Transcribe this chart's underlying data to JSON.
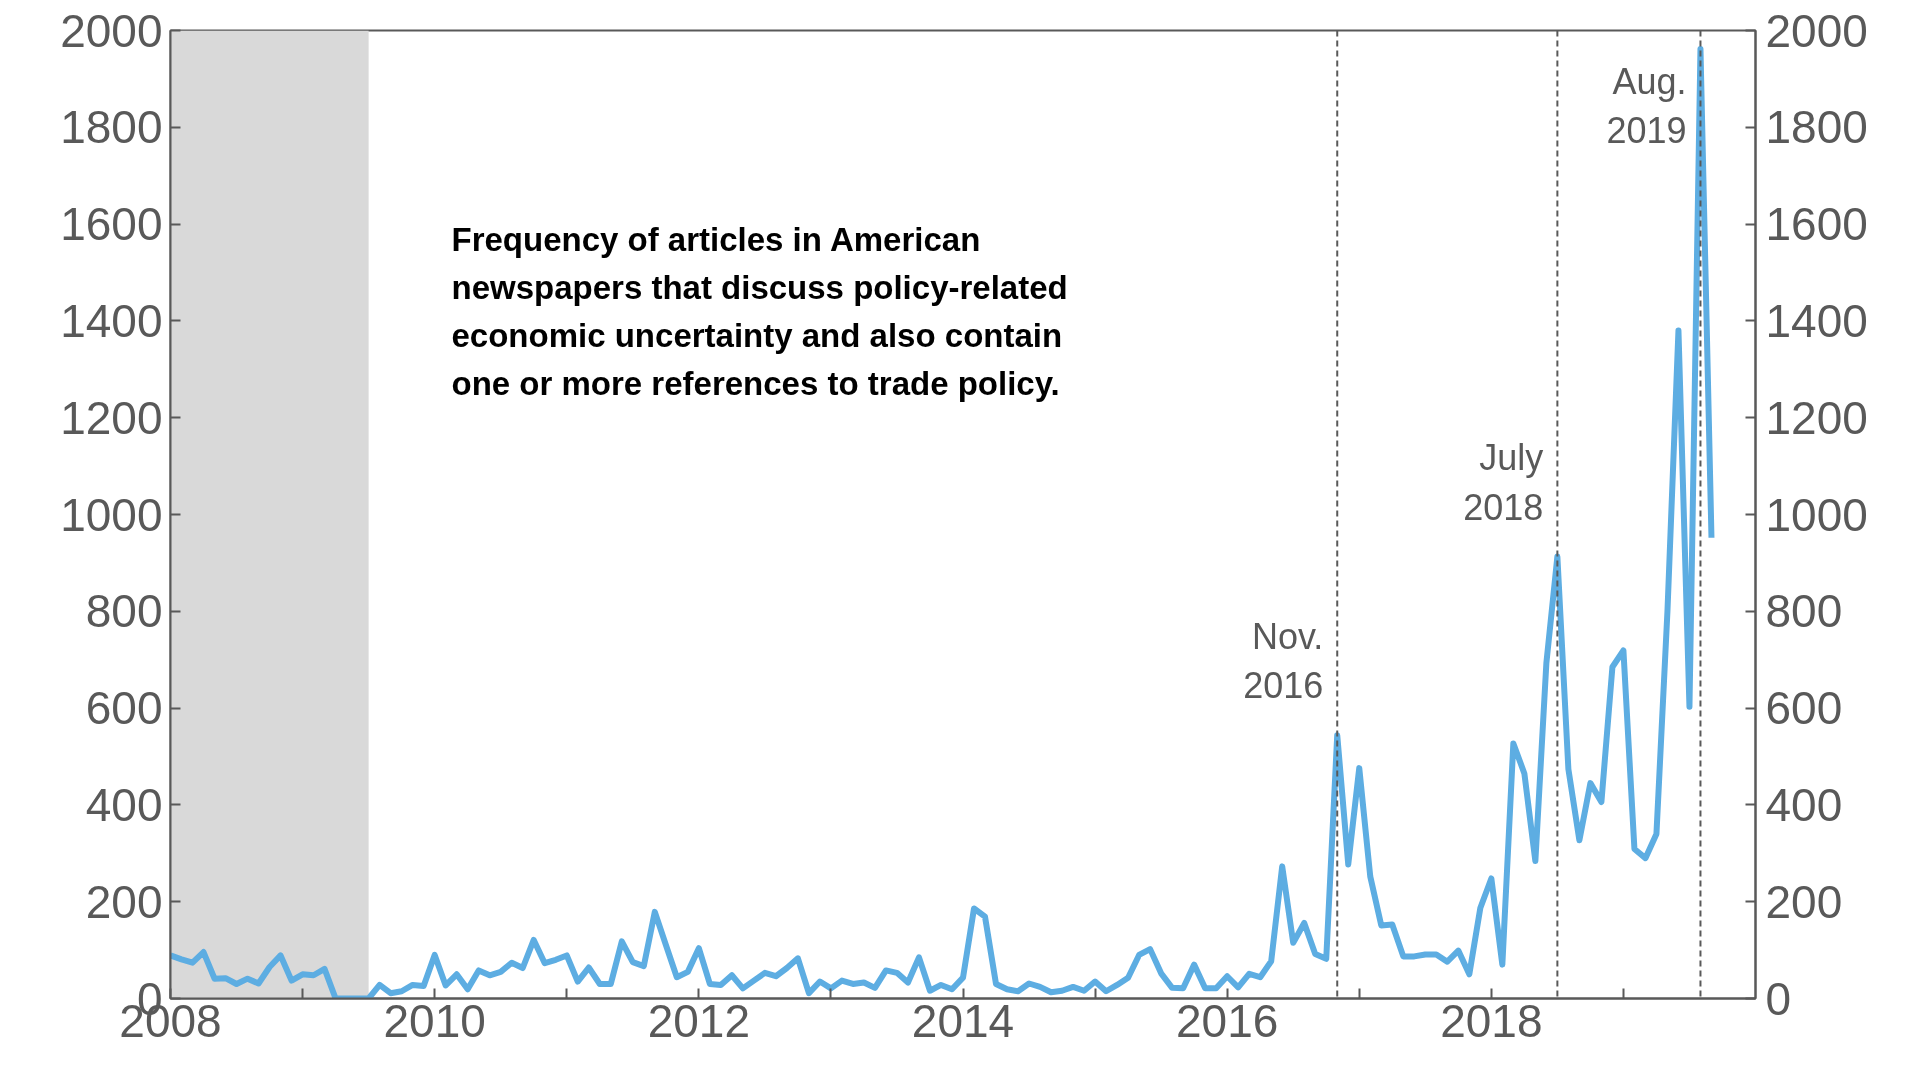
{
  "chart_data": {
    "type": "line",
    "annotations": [
      "Frequency of articles in American\nnewspapers that discuss policy-related\neconomic uncertainty and also contain\none or more references to trade policy."
    ],
    "series": [
      {
        "color": "#5dade2",
        "x": [
          "2008-01",
          "2008-02",
          "2008-03",
          "2008-04",
          "2008-05",
          "2008-06",
          "2008-07",
          "2008-08",
          "2008-09",
          "2008-10",
          "2008-11",
          "2008-12",
          "2009-01",
          "2009-02",
          "2009-03",
          "2009-04",
          "2009-05",
          "2009-06",
          "2009-07",
          "2009-08",
          "2009-09",
          "2009-10",
          "2009-11",
          "2009-12",
          "2010-01",
          "2010-02",
          "2010-03",
          "2010-04",
          "2010-05",
          "2010-06",
          "2010-07",
          "2010-08",
          "2010-09",
          "2010-10",
          "2010-11",
          "2010-12",
          "2011-01",
          "2011-02",
          "2011-03",
          "2011-04",
          "2011-05",
          "2011-06",
          "2011-07",
          "2011-08",
          "2011-09",
          "2011-10",
          "2011-11",
          "2011-12",
          "2012-01",
          "2012-02",
          "2012-03",
          "2012-04",
          "2012-05",
          "2012-06",
          "2012-07",
          "2012-08",
          "2012-09",
          "2012-10",
          "2012-11",
          "2012-12",
          "2013-01",
          "2013-02",
          "2013-03",
          "2013-04",
          "2013-05",
          "2013-06",
          "2013-07",
          "2013-08",
          "2013-09",
          "2013-10",
          "2013-11",
          "2013-12",
          "2014-01",
          "2014-02",
          "2014-03",
          "2014-04",
          "2014-05",
          "2014-06",
          "2014-07",
          "2014-08",
          "2014-09",
          "2014-10",
          "2014-11",
          "2014-12",
          "2015-01",
          "2015-02",
          "2015-03",
          "2015-04",
          "2015-05",
          "2015-06",
          "2015-07",
          "2015-08",
          "2015-09",
          "2015-10",
          "2015-11",
          "2015-12",
          "2016-01",
          "2016-02",
          "2016-03",
          "2016-04",
          "2016-05",
          "2016-06",
          "2016-07",
          "2016-08",
          "2016-09",
          "2016-10",
          "2016-11",
          "2016-12",
          "2017-01",
          "2017-02",
          "2017-03",
          "2017-04",
          "2017-05",
          "2017-06",
          "2017-07",
          "2017-08",
          "2017-09",
          "2017-10",
          "2017-11",
          "2017-12",
          "2018-01",
          "2018-02",
          "2018-03",
          "2018-04",
          "2018-05",
          "2018-06",
          "2018-07",
          "2018-08",
          "2018-09",
          "2018-10",
          "2018-11",
          "2018-12",
          "2019-01",
          "2019-02",
          "2019-03",
          "2019-04",
          "2019-05",
          "2019-06",
          "2019-07",
          "2019-08",
          "2019-09"
        ],
        "values": [
          89,
          81,
          74,
          96,
          41,
          42,
          30,
          41,
          31,
          65,
          89,
          37,
          50,
          48,
          61,
          0,
          0,
          0,
          0,
          28,
          11,
          15,
          28,
          26,
          90,
          27,
          50,
          19,
          58,
          48,
          55,
          74,
          63,
          121,
          73,
          80,
          89,
          35,
          64,
          30,
          30,
          118,
          75,
          67,
          179,
          111,
          44,
          55,
          104,
          30,
          28,
          48,
          21,
          37,
          53,
          46,
          63,
          83,
          11,
          35,
          21,
          37,
          30,
          33,
          22,
          58,
          53,
          33,
          85,
          16,
          28,
          19,
          43,
          186,
          169,
          30,
          19,
          15,
          31,
          24,
          13,
          16,
          24,
          16,
          35,
          15,
          28,
          43,
          90,
          102,
          52,
          22,
          21,
          70,
          21,
          21,
          46,
          23,
          51,
          44,
          77,
          273,
          115,
          156,
          92,
          82,
          544,
          277,
          476,
          252,
          151,
          153,
          87,
          87,
          91,
          91,
          76,
          99,
          50,
          187,
          248,
          70,
          527,
          465,
          284,
          693,
          913,
          474,
          327,
          445,
          406,
          685,
          719,
          309,
          290,
          340,
          800,
          1380,
          603,
          1962,
          952
        ]
      }
    ],
    "xlim": [
      "2008",
      "2020"
    ],
    "xticks": [
      {
        "value": "2008",
        "label": "2008"
      },
      {
        "value": "2009",
        "label": null
      },
      {
        "value": "2010",
        "label": "2010"
      },
      {
        "value": "2011",
        "label": null
      },
      {
        "value": "2012",
        "label": "2012"
      },
      {
        "value": "2013",
        "label": null
      },
      {
        "value": "2014",
        "label": "2014"
      },
      {
        "value": "2015",
        "label": null
      },
      {
        "value": "2016",
        "label": "2016"
      },
      {
        "value": "2017",
        "label": null
      },
      {
        "value": "2018",
        "label": "2018"
      },
      {
        "value": "2019",
        "label": null
      }
    ],
    "ylim": [
      0,
      2000
    ],
    "yticks": [
      0,
      200,
      400,
      600,
      800,
      1000,
      1200,
      1400,
      1600,
      1800,
      2000
    ],
    "y2lim": [
      0,
      2000
    ],
    "y2ticks": [
      0,
      200,
      400,
      600,
      800,
      1000,
      1200,
      1400,
      1600,
      1800,
      2000
    ],
    "ref_lines": [
      {
        "axis": "x",
        "value": "2016-11",
        "label": "Nov.\n2016",
        "color": "#595959",
        "line_style": "dashed"
      },
      {
        "axis": "x",
        "value": "2018-07",
        "label": "July\n2018",
        "color": "#595959",
        "line_style": "dashed"
      },
      {
        "axis": "x",
        "value": "2019-08",
        "label": "Aug.\n2019",
        "color": "#595959",
        "line_style": "dashed"
      }
    ],
    "bands": [
      {
        "axis": "x",
        "from": "2008",
        "to": "2009-07",
        "color": "#d9d9d9"
      }
    ],
    "grid": false,
    "line_style": "solid"
  }
}
